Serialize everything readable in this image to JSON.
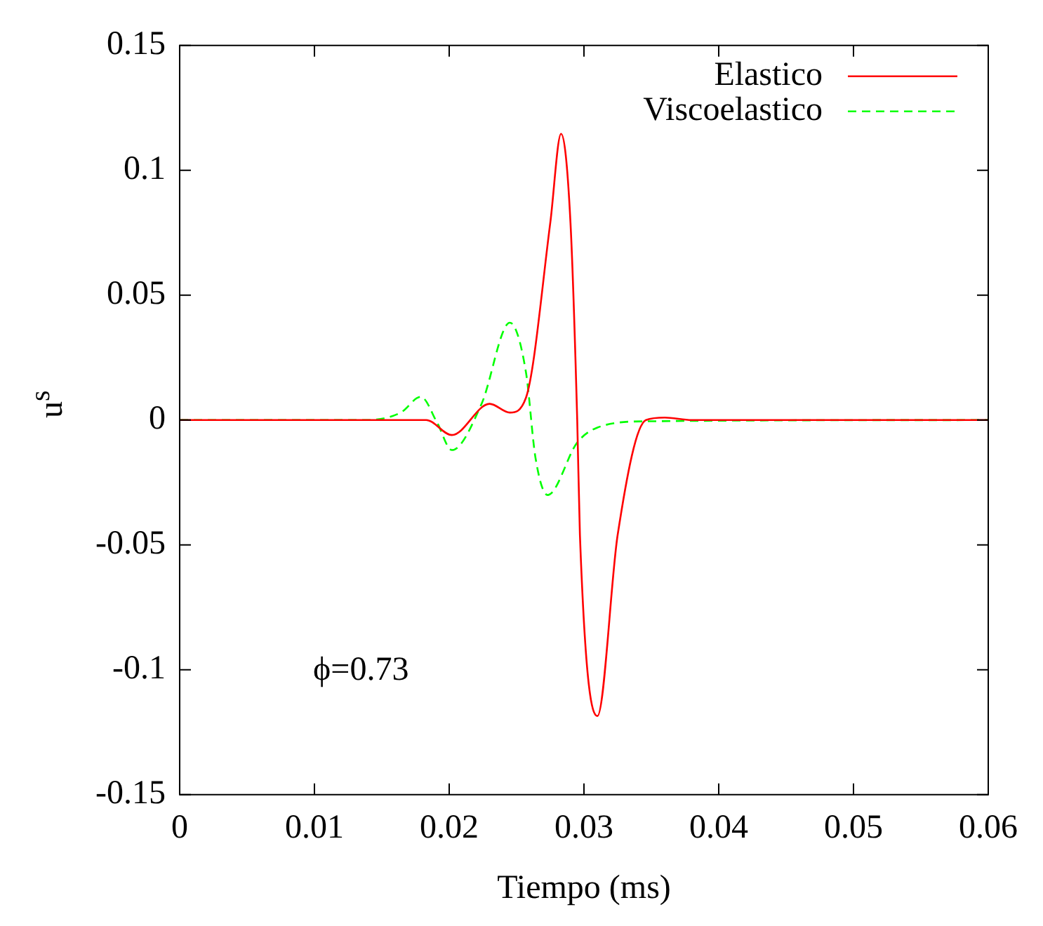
{
  "chart_data": {
    "type": "line",
    "xlabel": "Tiempo (ms)",
    "ylabel": "u$^{s}$",
    "xlim": [
      0,
      0.06
    ],
    "xticks": [
      0,
      0.01,
      0.02,
      0.03,
      0.04,
      0.05,
      0.06
    ],
    "ylim": [
      -0.15,
      0.15
    ],
    "yticks": [
      -0.15,
      -0.1,
      -0.05,
      0,
      0.05,
      0.1,
      0.15
    ],
    "grid": false,
    "legend": "top right",
    "marker": "none",
    "annotations": [
      "ϕ=0.73"
    ],
    "series": [
      {
        "name": "Elastico",
        "color": "#ff0000",
        "line_style": "solid",
        "x": [
          0,
          0.0139,
          0.0183,
          0.0202,
          0.023,
          0.0245,
          0.0257,
          0.0275,
          0.0283,
          0.029,
          0.0295,
          0.0297,
          0.031,
          0.0325,
          0.0346,
          0.036,
          0.038,
          0.06
        ],
        "values": [
          0,
          0,
          0,
          -0.006,
          0.0065,
          0.003,
          0.009,
          0.079,
          0.1146,
          0.079,
          0,
          -0.046,
          -0.1185,
          -0.046,
          0,
          0.001,
          0,
          0
        ]
      },
      {
        "name": "Viscoelastico",
        "color": "#00ff00",
        "line_style": "dashed",
        "x": [
          0,
          0.0139,
          0.0164,
          0.0179,
          0.0191,
          0.0202,
          0.0224,
          0.0245,
          0.0257,
          0.0264,
          0.0273,
          0.0295,
          0.031,
          0.0346,
          0.06
        ],
        "values": [
          0,
          0,
          0.003,
          0.0093,
          -0.001,
          -0.012,
          0.0065,
          0.039,
          0.019,
          -0.015,
          -0.03,
          -0.009,
          -0.003,
          -0.0005,
          0
        ]
      }
    ]
  }
}
